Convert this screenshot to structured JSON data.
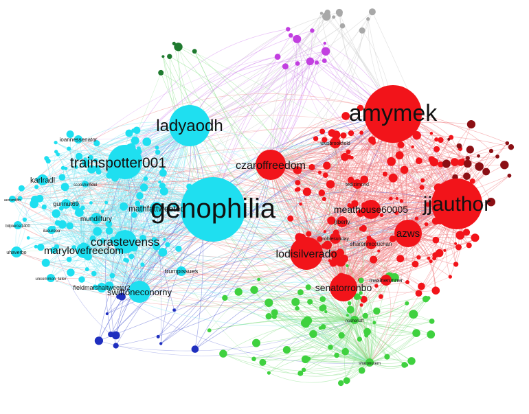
{
  "graph": {
    "background": "#ffffff",
    "colors": {
      "cyan": "#1fdff0",
      "red": "#f2141a",
      "green": "#3fd13f",
      "magenta": "#c23fe0",
      "navy": "#1f2fbf",
      "darkred": "#8b0f14",
      "gray": "#a8a8a8",
      "darkgreen": "#1f7a2f"
    },
    "edge_colors": {
      "cyan": "#7fe6f2",
      "red": "#f07c7f",
      "green": "#8fe28f",
      "magenta": "#d58cf0",
      "navy": "#5a66d6"
    },
    "hubs": [
      {
        "id": "genophilia",
        "label": "genophilia",
        "color": "cyan"
      },
      {
        "id": "amymek",
        "label": "amymek",
        "color": "red"
      },
      {
        "id": "jjauthor",
        "label": "jjauthor",
        "color": "red"
      },
      {
        "id": "ladyaodh",
        "label": "ladyaodh",
        "color": "cyan"
      },
      {
        "id": "trainspotter001",
        "label": "trainspotter001",
        "color": "cyan"
      },
      {
        "id": "czaroffreedom",
        "label": "czaroffreedom",
        "color": "red"
      },
      {
        "id": "lodisilverado",
        "label": "lodisilverado",
        "color": "red"
      },
      {
        "id": "corastevenss",
        "label": "corastevenss",
        "color": "cyan"
      },
      {
        "id": "marylovefreedom",
        "label": "marylovefreedom",
        "color": "cyan"
      },
      {
        "id": "senatorronbo",
        "label": "senatorronbo",
        "color": "red"
      },
      {
        "id": "swiftoneconorny",
        "label": "swiftoneconorny",
        "color": "cyan"
      },
      {
        "id": "azws",
        "label": "azws",
        "color": "red"
      },
      {
        "id": "meathouse60005",
        "label": "meathouse60005",
        "color": "red"
      },
      {
        "id": "mathfattweeted",
        "label": "mathfattweeted",
        "color": "cyan"
      },
      {
        "id": "karlradl",
        "label": "karlradl",
        "color": "cyan"
      },
      {
        "id": "mundilfury",
        "label": "mundilfury",
        "color": "cyan"
      },
      {
        "id": "gunnut69",
        "label": "gunnut69",
        "color": "cyan"
      },
      {
        "id": "trumpissues",
        "label": "trumpissues",
        "color": "cyan"
      },
      {
        "id": "fieldmarshal",
        "label": "fieldmarshaltweeter2",
        "color": "cyan"
      },
      {
        "id": "ioannessenator",
        "label": "ioannessenator",
        "color": "cyan"
      },
      {
        "id": "sharonmccuchan",
        "label": "sharonmccuchan",
        "color": "red"
      },
      {
        "id": "maxinerunner",
        "label": "maxinerunner",
        "color": "red"
      },
      {
        "id": "jjlberty",
        "label": "jjlberty",
        "color": "red"
      },
      {
        "id": "uhaverbo",
        "label": "uhaverbo",
        "color": "cyan"
      },
      {
        "id": "uncommon",
        "label": "uncommon_tater",
        "color": "cyan"
      },
      {
        "id": "teusbrookfield",
        "label": "teusbrookfield",
        "color": "red"
      },
      {
        "id": "scotishinfidel",
        "label": "scotishinfidel",
        "color": "cyan"
      },
      {
        "id": "tedizimond",
        "label": "tedizimond",
        "color": "red"
      },
      {
        "id": "ilaeuropa",
        "label": "ilaeuropa",
        "color": "cyan"
      },
      {
        "id": "noblesunday",
        "label": "noblesunday",
        "color": "red"
      },
      {
        "id": "bilpierce1400",
        "label": "bilpierce1400",
        "color": "cyan"
      },
      {
        "id": "aeolsmithh",
        "label": "aeolsmithh",
        "color": "cyan"
      },
      {
        "id": "sharonurem",
        "label": "sharonurem",
        "color": "green"
      },
      {
        "id": "nosheriaft",
        "label": "nosheriaft",
        "color": "green"
      }
    ]
  }
}
